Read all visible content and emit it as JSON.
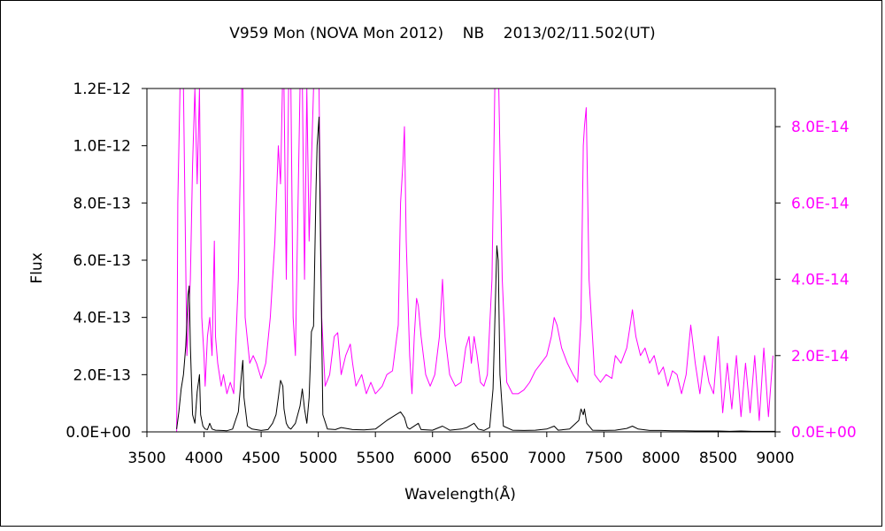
{
  "chart_data": {
    "type": "line",
    "title": "V959 Mon (NOVA Mon 2012)    NB    2013/02/11.502(UT)",
    "xlabel": "Wavelength(Å)",
    "ylabel": "Flux",
    "xlim": [
      3500,
      9000
    ],
    "ylim_left": [
      0,
      1.2e-12
    ],
    "ylim_right": [
      0,
      9e-14
    ],
    "x_ticks": [
      3500,
      4000,
      4500,
      5000,
      5500,
      6000,
      6500,
      7000,
      7500,
      8000,
      8500,
      9000
    ],
    "x_tick_labels": [
      "3500",
      "4000",
      "4500",
      "5000",
      "5500",
      "6000",
      "6500",
      "7000",
      "7500",
      "8000",
      "8500",
      "9000"
    ],
    "y_left_ticks": [
      0,
      2e-13,
      4e-13,
      6e-13,
      8e-13,
      1e-12,
      1.2e-12
    ],
    "y_left_tick_labels": [
      "0.0E+00",
      "2.0E-13",
      "4.0E-13",
      "6.0E-13",
      "8.0E-13",
      "1.0E-12",
      "1.2E-12"
    ],
    "y_right_ticks": [
      0,
      2e-14,
      4e-14,
      6e-14,
      8e-14
    ],
    "y_right_tick_labels": [
      "0.0E+00",
      "2.0E-14",
      "4.0E-14",
      "6.0E-14",
      "8.0E-14"
    ],
    "grid": false,
    "colors": {
      "black_series": "#000000",
      "magenta_series": "#ff00ff",
      "right_axis": "#ff00ff"
    },
    "series": [
      {
        "color": "#000000",
        "axis": "left",
        "x": [
          3760,
          3780,
          3800,
          3820,
          3840,
          3860,
          3870,
          3880,
          3900,
          3920,
          3940,
          3960,
          3970,
          3990,
          4010,
          4030,
          4050,
          4070,
          4100,
          4150,
          4200,
          4250,
          4300,
          4330,
          4340,
          4350,
          4380,
          4420,
          4500,
          4560,
          4600,
          4630,
          4650,
          4670,
          4690,
          4700,
          4720,
          4740,
          4760,
          4800,
          4840,
          4860,
          4880,
          4900,
          4920,
          4940,
          4959,
          4980,
          4990,
          5007,
          5020,
          5040,
          5080,
          5150,
          5200,
          5300,
          5400,
          5500,
          5600,
          5680,
          5720,
          5754,
          5780,
          5800,
          5876,
          5900,
          6000,
          6087,
          6150,
          6250,
          6300,
          6364,
          6400,
          6450,
          6500,
          6530,
          6550,
          6563,
          6575,
          6590,
          6620,
          6700,
          6800,
          6900,
          7000,
          7065,
          7100,
          7200,
          7280,
          7300,
          7320,
          7330,
          7350,
          7400,
          7500,
          7600,
          7700,
          7750,
          7800,
          7900,
          8000,
          8100,
          8200,
          8300,
          8400,
          8500,
          8600,
          8700,
          8800,
          8900,
          9000
        ],
        "values": [
          1e-14,
          7e-14,
          1.5e-13,
          2e-13,
          3e-13,
          4.8e-13,
          5.1e-13,
          3e-13,
          6e-14,
          3e-14,
          1.4e-13,
          2e-13,
          6e-14,
          2e-14,
          1e-14,
          8e-15,
          3e-14,
          1e-14,
          6e-15,
          5e-15,
          4e-15,
          1e-14,
          7e-14,
          2.1e-13,
          2.5e-13,
          1.2e-13,
          2e-14,
          1e-14,
          5e-15,
          8e-15,
          3e-14,
          6e-14,
          1.2e-13,
          1.8e-13,
          1.6e-13,
          8e-14,
          3e-14,
          1.5e-14,
          1e-14,
          3e-14,
          9e-14,
          1.5e-13,
          8e-14,
          3e-14,
          1.2e-13,
          3.5e-13,
          3.7e-13,
          8.5e-13,
          1e-12,
          1.1e-12,
          6.5e-13,
          6e-14,
          1e-14,
          8e-15,
          1.5e-14,
          8e-15,
          7e-15,
          1e-14,
          4e-14,
          6e-14,
          7e-14,
          5e-14,
          1.5e-14,
          1e-14,
          3e-14,
          8e-15,
          6e-15,
          2e-14,
          6e-15,
          1e-14,
          1.5e-14,
          3e-14,
          1e-14,
          5e-15,
          1.5e-14,
          1.5e-13,
          4.5e-13,
          6.5e-13,
          6e-13,
          2e-13,
          2e-14,
          6e-15,
          5e-15,
          6e-15,
          1e-14,
          2e-14,
          6e-15,
          1e-14,
          4e-14,
          8e-14,
          6e-14,
          8e-14,
          3e-14,
          6e-15,
          5e-15,
          6e-15,
          1.2e-14,
          2e-14,
          1e-14,
          5e-15,
          5e-15,
          4e-15,
          4e-15,
          3e-15,
          3e-15,
          3e-15,
          2e-15,
          3e-15,
          2e-15,
          2e-15,
          2e-15
        ]
      },
      {
        "color": "#ff00ff",
        "axis": "right",
        "x": [
          3760,
          3770,
          3790,
          3800,
          3820,
          3850,
          3880,
          3900,
          3920,
          3940,
          3960,
          3980,
          4000,
          4010,
          4030,
          4050,
          4070,
          4090,
          4100,
          4120,
          4150,
          4170,
          4200,
          4230,
          4260,
          4300,
          4330,
          4340,
          4360,
          4400,
          4430,
          4460,
          4500,
          4540,
          4580,
          4620,
          4650,
          4670,
          4686,
          4700,
          4720,
          4740,
          4760,
          4780,
          4800,
          4840,
          4861,
          4880,
          4900,
          4920,
          4959,
          4980,
          5007,
          5030,
          5060,
          5100,
          5140,
          5170,
          5200,
          5240,
          5280,
          5300,
          5330,
          5380,
          5420,
          5460,
          5500,
          5560,
          5600,
          5650,
          5700,
          5720,
          5740,
          5754,
          5770,
          5800,
          5820,
          5840,
          5860,
          5876,
          5900,
          5940,
          5980,
          6020,
          6060,
          6087,
          6110,
          6150,
          6200,
          6250,
          6290,
          6320,
          6340,
          6364,
          6390,
          6420,
          6450,
          6480,
          6520,
          6545,
          6563,
          6580,
          6610,
          6650,
          6700,
          6750,
          6800,
          6850,
          6900,
          6950,
          7000,
          7040,
          7065,
          7090,
          7130,
          7180,
          7230,
          7270,
          7300,
          7320,
          7330,
          7345,
          7370,
          7420,
          7470,
          7520,
          7570,
          7600,
          7650,
          7700,
          7730,
          7750,
          7780,
          7820,
          7860,
          7900,
          7940,
          7980,
          8020,
          8060,
          8100,
          8140,
          8180,
          8220,
          8260,
          8300,
          8340,
          8380,
          8420,
          8460,
          8500,
          8540,
          8580,
          8620,
          8660,
          8700,
          8740,
          8780,
          8820,
          8860,
          8900,
          8940,
          8980
        ],
        "values": [
          0.0,
          6e-14,
          9e-14,
          9e-14,
          9e-14,
          2e-14,
          4e-14,
          7e-14,
          9e-14,
          6.5e-14,
          9e-14,
          3e-14,
          2e-14,
          1.2e-14,
          2.5e-14,
          3e-14,
          2e-14,
          5e-14,
          2.5e-14,
          1.8e-14,
          1.2e-14,
          1.5e-14,
          1e-14,
          1.3e-14,
          1e-14,
          4e-14,
          9e-14,
          9e-14,
          3e-14,
          1.8e-14,
          2e-14,
          1.8e-14,
          1.4e-14,
          1.8e-14,
          3e-14,
          5e-14,
          7.5e-14,
          6.5e-14,
          9e-14,
          9e-14,
          4e-14,
          9e-14,
          9e-14,
          3e-14,
          2e-14,
          9e-14,
          9e-14,
          4e-14,
          9e-14,
          5e-14,
          9e-14,
          9e-14,
          9e-14,
          3e-14,
          1.2e-14,
          1.5e-14,
          2.5e-14,
          2.6e-14,
          1.5e-14,
          2e-14,
          2.3e-14,
          1.8e-14,
          1.2e-14,
          1.5e-14,
          1e-14,
          1.3e-14,
          1e-14,
          1.2e-14,
          1.5e-14,
          1.6e-14,
          2.8e-14,
          6e-14,
          7e-14,
          8e-14,
          5e-14,
          2e-14,
          1e-14,
          2.5e-14,
          3.5e-14,
          3.3e-14,
          2.5e-14,
          1.5e-14,
          1.2e-14,
          1.5e-14,
          2.5e-14,
          4e-14,
          2.5e-14,
          1.5e-14,
          1.2e-14,
          1.3e-14,
          2.2e-14,
          2.5e-14,
          1.8e-14,
          2.5e-14,
          2e-14,
          1.3e-14,
          1.2e-14,
          1.5e-14,
          4e-14,
          9e-14,
          9e-14,
          9e-14,
          4e-14,
          1.3e-14,
          1e-14,
          1e-14,
          1.1e-14,
          1.3e-14,
          1.6e-14,
          1.8e-14,
          2e-14,
          2.5e-14,
          3e-14,
          2.8e-14,
          2.2e-14,
          1.8e-14,
          1.5e-14,
          1.3e-14,
          3e-14,
          7.5e-14,
          8e-14,
          8.5e-14,
          4e-14,
          1.5e-14,
          1.3e-14,
          1.5e-14,
          1.4e-14,
          2e-14,
          1.8e-14,
          2.2e-14,
          2.8e-14,
          3.2e-14,
          2.5e-14,
          2e-14,
          2.2e-14,
          1.8e-14,
          2e-14,
          1.5e-14,
          1.7e-14,
          1.2e-14,
          1.6e-14,
          1.5e-14,
          1e-14,
          1.5e-14,
          2.8e-14,
          1.8e-14,
          1e-14,
          2e-14,
          1.3e-14,
          1e-14,
          2.5e-14,
          5e-15,
          1.8e-14,
          6e-15,
          2e-14,
          4e-15,
          1.8e-14,
          5e-15,
          2e-14,
          3e-15,
          2.2e-14,
          4e-15,
          2e-14
        ]
      }
    ]
  }
}
